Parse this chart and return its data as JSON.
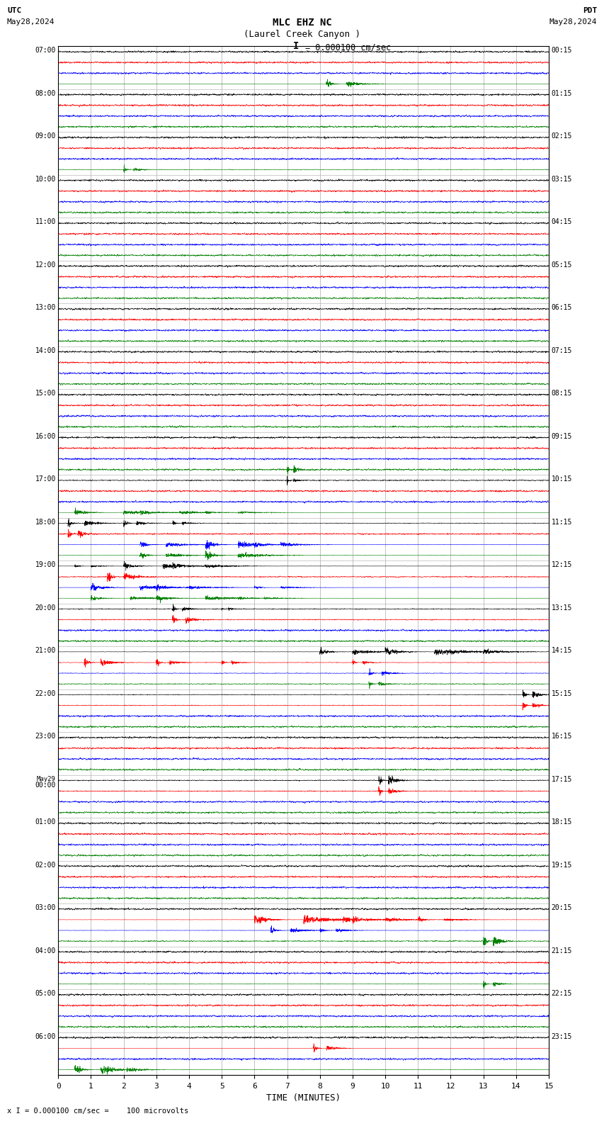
{
  "title_line1": "MLC EHZ NC",
  "title_line2": "(Laurel Creek Canyon )",
  "scale_label": "= 0.000100 cm/sec",
  "utc_label1": "UTC",
  "utc_label2": "May28,2024",
  "pdt_label1": "PDT",
  "pdt_label2": "May28,2024",
  "bottom_label": "x I = 0.000100 cm/sec =    100 microvolts",
  "xlabel": "TIME (MINUTES)",
  "xlim": [
    0,
    15
  ],
  "xticks": [
    0,
    1,
    2,
    3,
    4,
    5,
    6,
    7,
    8,
    9,
    10,
    11,
    12,
    13,
    14,
    15
  ],
  "bg_color": "#ffffff",
  "grid_color": "#aaaaaa",
  "trace_colors": [
    "black",
    "red",
    "blue",
    "green"
  ],
  "fig_width": 8.5,
  "fig_height": 16.13,
  "hour_labels_utc": [
    "07:00",
    "08:00",
    "09:00",
    "10:00",
    "11:00",
    "12:00",
    "13:00",
    "14:00",
    "15:00",
    "16:00",
    "17:00",
    "18:00",
    "19:00",
    "20:00",
    "21:00",
    "22:00",
    "23:00",
    "May29\n00:00",
    "01:00",
    "02:00",
    "03:00",
    "04:00",
    "05:00",
    "06:00"
  ],
  "hour_labels_pdt": [
    "00:15",
    "01:15",
    "02:15",
    "03:15",
    "04:15",
    "05:15",
    "06:15",
    "07:15",
    "08:15",
    "09:15",
    "10:15",
    "11:15",
    "12:15",
    "13:15",
    "14:15",
    "15:15",
    "16:15",
    "17:15",
    "18:15",
    "19:15",
    "20:15",
    "21:15",
    "22:15",
    "23:15"
  ]
}
